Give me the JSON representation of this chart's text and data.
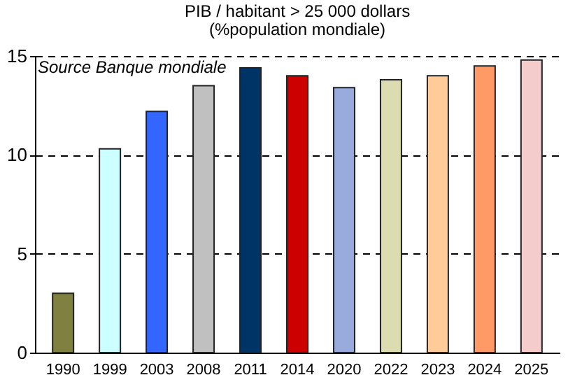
{
  "chart_data": {
    "type": "bar",
    "title": "PIB / habitant > 25 000 dollars",
    "subtitle": "(%population  mondiale)",
    "annotations": [
      "Source Banque mondiale"
    ],
    "categories": [
      "1990",
      "1999",
      "2003",
      "2008",
      "2011",
      "2014",
      "2020",
      "2022",
      "2023",
      "2024",
      "2025"
    ],
    "values": [
      3.0,
      10.3,
      12.2,
      13.5,
      14.4,
      14.0,
      13.4,
      13.8,
      14.0,
      14.5,
      14.8
    ],
    "colors": [
      "#808040",
      "#ccffff",
      "#3366ff",
      "#c0c0c0",
      "#003366",
      "#cc0000",
      "#99aadd",
      "#dcdcb0",
      "#ffcc99",
      "#ff9966",
      "#f4cccc"
    ],
    "ylim": [
      0,
      15
    ],
    "yticks": [
      0,
      5,
      10,
      15
    ],
    "grid": "y"
  }
}
